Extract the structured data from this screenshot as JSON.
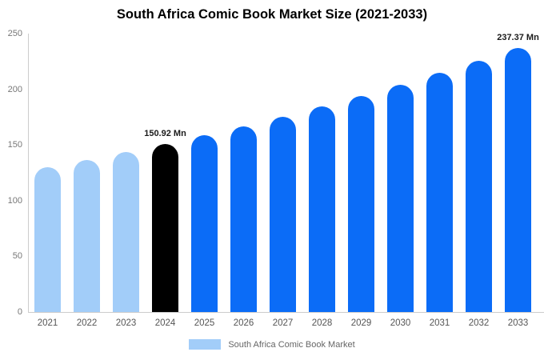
{
  "chart_data": {
    "type": "bar",
    "title": "South Africa Comic Book Market Size (2021-2033)",
    "unit": "Mn",
    "categories": [
      "2021",
      "2022",
      "2023",
      "2024",
      "2025",
      "2026",
      "2027",
      "2028",
      "2029",
      "2030",
      "2031",
      "2032",
      "2033"
    ],
    "values": [
      129.8,
      136.5,
      143.5,
      150.92,
      158.7,
      166.9,
      175.5,
      184.6,
      194.1,
      204.1,
      214.7,
      225.7,
      237.37
    ],
    "bar_colors": [
      "#a2cdf9",
      "#a2cdf9",
      "#a2cdf9",
      "#000000",
      "#0b6cf7",
      "#0b6cf7",
      "#0b6cf7",
      "#0b6cf7",
      "#0b6cf7",
      "#0b6cf7",
      "#0b6cf7",
      "#0b6cf7",
      "#0b6cf7"
    ],
    "annotations": [
      {
        "index": 3,
        "text": "150.92 Mn"
      },
      {
        "index": 12,
        "text": "237.37 Mn"
      }
    ],
    "ylim": [
      0,
      250
    ],
    "yticks": [
      0,
      50,
      100,
      150,
      200,
      250
    ],
    "grid": false,
    "legend": {
      "label": "South Africa Comic Book Market",
      "swatch_color": "#a2cdf9",
      "position": "bottom"
    },
    "colors": {
      "historical": "#a2cdf9",
      "base_year": "#000000",
      "forecast": "#0b6cf7"
    }
  }
}
